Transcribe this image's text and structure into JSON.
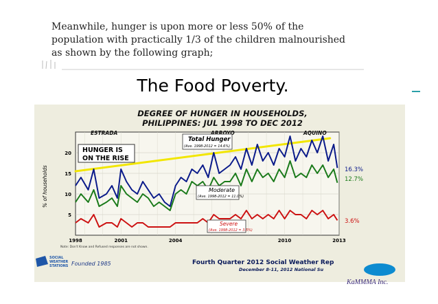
{
  "intro_text": "Meanwhile, hunger is upon  more or less 50% of the population with  practically 1/3 of the children malnourished as shown by the following graph;",
  "slide_title": "The Food Poverty.",
  "chart_data": {
    "type": "line",
    "title": "DEGREE OF HUNGER IN HOUSEHOLDS,",
    "subtitle": "PHILIPPINES: JUL 1998 TO DEC 2012",
    "ylabel": "% of households",
    "x_ticks": [
      "1998",
      "2001",
      "2004",
      "2010",
      "2013"
    ],
    "x_tick_values": [
      1998.5,
      2001,
      2004,
      2010,
      2013
    ],
    "y_ticks": [
      5,
      10,
      15,
      20
    ],
    "xlim": [
      1998.5,
      2013
    ],
    "ylim": [
      0,
      25
    ],
    "periods": [
      "ESTRADA",
      "ARROYO",
      "AQUINO"
    ],
    "annotation_box": "HUNGER IS ON THE RISE",
    "trend_line": {
      "x": [
        1998.5,
        2012.5
      ],
      "y": [
        15.5,
        23.5
      ]
    },
    "series": [
      {
        "name": "Total Hunger",
        "color": "#0a1a8a",
        "end_label": "16.3%",
        "average_label": "(Ave. 1998-2012 = 14.6%)",
        "x": [
          1998.5,
          1998.8,
          1999.2,
          1999.5,
          1999.8,
          2000.2,
          2000.5,
          2000.8,
          2001.0,
          2001.3,
          2001.6,
          2001.9,
          2002.2,
          2002.5,
          2002.8,
          2003.1,
          2003.4,
          2003.7,
          2004.0,
          2004.3,
          2004.6,
          2004.9,
          2005.2,
          2005.5,
          2005.8,
          2006.1,
          2006.4,
          2006.7,
          2007.0,
          2007.3,
          2007.6,
          2007.9,
          2008.2,
          2008.5,
          2008.8,
          2009.1,
          2009.4,
          2009.7,
          2010.0,
          2010.3,
          2010.6,
          2010.9,
          2011.2,
          2011.5,
          2011.8,
          2012.1,
          2012.4,
          2012.7,
          2012.9
        ],
        "values": [
          12,
          14,
          11,
          16,
          9,
          10,
          12,
          9,
          16,
          13,
          11,
          10,
          13,
          11,
          9,
          10,
          8,
          7,
          12,
          14,
          13,
          16,
          15,
          17,
          14,
          20,
          15,
          16,
          17,
          19,
          16,
          21,
          17,
          22,
          18,
          20,
          17,
          21,
          19,
          24,
          18,
          21,
          19,
          23,
          20,
          24,
          18,
          22,
          16.3
        ]
      },
      {
        "name": "Moderate",
        "color": "#1a7a1a",
        "end_label": "12.7%",
        "average_label": "(Ave. 1998-2012 = 11.0%)",
        "x": [
          1998.5,
          1998.8,
          1999.2,
          1999.5,
          1999.8,
          2000.2,
          2000.5,
          2000.8,
          2001.0,
          2001.3,
          2001.6,
          2001.9,
          2002.2,
          2002.5,
          2002.8,
          2003.1,
          2003.4,
          2003.7,
          2004.0,
          2004.3,
          2004.6,
          2004.9,
          2005.2,
          2005.5,
          2005.8,
          2006.1,
          2006.4,
          2006.7,
          2007.0,
          2007.3,
          2007.6,
          2007.9,
          2008.2,
          2008.5,
          2008.8,
          2009.1,
          2009.4,
          2009.7,
          2010.0,
          2010.3,
          2010.6,
          2010.9,
          2011.2,
          2011.5,
          2011.8,
          2012.1,
          2012.4,
          2012.7,
          2012.9
        ],
        "values": [
          8,
          10,
          8,
          11,
          7,
          8,
          9,
          7,
          12,
          10,
          9,
          8,
          10,
          9,
          7,
          8,
          7,
          6,
          10,
          11,
          10,
          13,
          12,
          13,
          11,
          14,
          12,
          13,
          13,
          15,
          12,
          16,
          13,
          16,
          14,
          15,
          13,
          16,
          14,
          18,
          14,
          15,
          14,
          17,
          15,
          17,
          14,
          16,
          12.7
        ]
      },
      {
        "name": "Severe",
        "color": "#cc1111",
        "end_label": "3.6%",
        "average_label": "(Ave. 1998-2012 = 3.5%)",
        "x": [
          1998.5,
          1998.8,
          1999.2,
          1999.5,
          1999.8,
          2000.2,
          2000.5,
          2000.8,
          2001.0,
          2001.3,
          2001.6,
          2001.9,
          2002.2,
          2002.5,
          2002.8,
          2003.1,
          2003.4,
          2003.7,
          2004.0,
          2004.3,
          2004.6,
          2004.9,
          2005.2,
          2005.5,
          2005.8,
          2006.1,
          2006.4,
          2006.7,
          2007.0,
          2007.3,
          2007.6,
          2007.9,
          2008.2,
          2008.5,
          2008.8,
          2009.1,
          2009.4,
          2009.7,
          2010.0,
          2010.3,
          2010.6,
          2010.9,
          2011.2,
          2011.5,
          2011.8,
          2012.1,
          2012.4,
          2012.7,
          2012.9
        ],
        "values": [
          3,
          4,
          3,
          5,
          2,
          3,
          3,
          2,
          4,
          3,
          2,
          3,
          3,
          2,
          2,
          2,
          2,
          2,
          3,
          3,
          3,
          3,
          3,
          4,
          3,
          5,
          4,
          4,
          4,
          5,
          4,
          6,
          4,
          5,
          4,
          5,
          4,
          6,
          4,
          6,
          5,
          5,
          4,
          6,
          5,
          6,
          4,
          5,
          3.6
        ]
      }
    ],
    "note_text": "Note: Don't Know and Refused responses are not shown.",
    "footer_source": "Fourth Quarter 2012 Social Weather Rep",
    "footer_date": "December 8-11, 2012 National Su",
    "sws_logo_text": [
      "SOCIAL",
      "WEATHER",
      "STATIONS"
    ],
    "founded_text": "Founded 1985"
  },
  "footer_brand": "KaMMMA Inc."
}
